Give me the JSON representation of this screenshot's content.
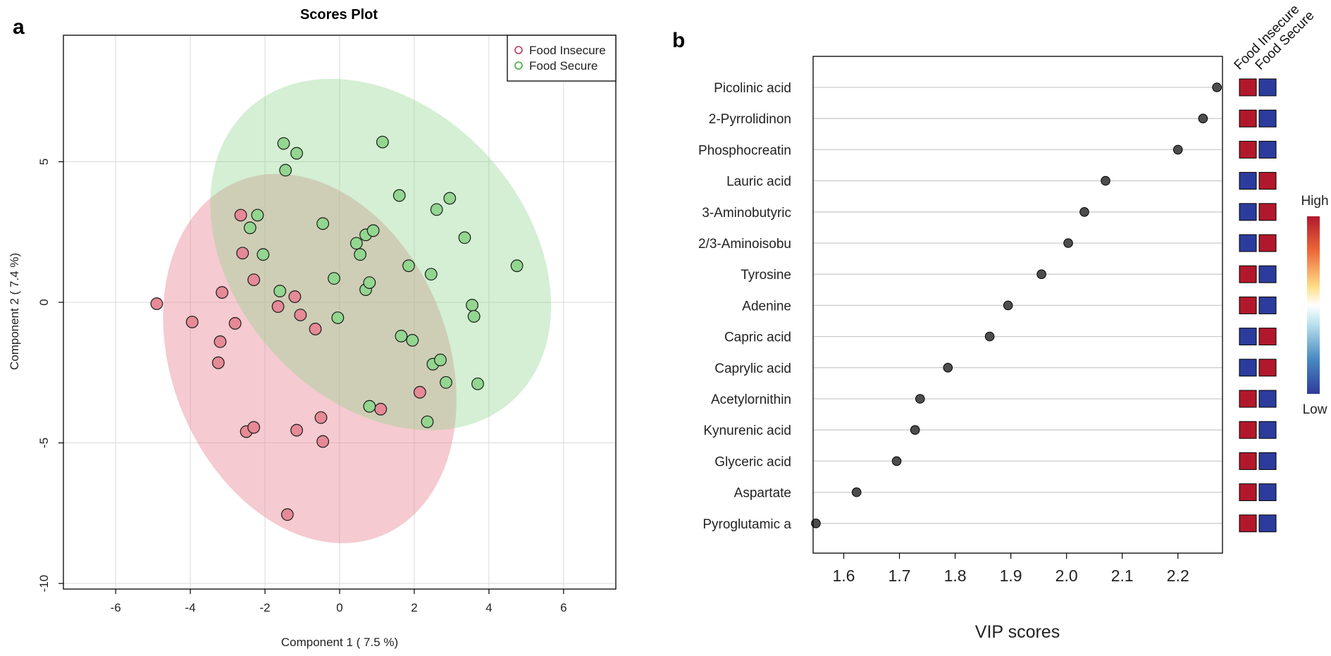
{
  "panel_a_label": "a",
  "panel_b_label": "b",
  "colors": {
    "insecure": "#e8808e",
    "secure": "#8ed48c",
    "insecure_marker": "#c0395a",
    "secure_marker": "#3fae3c",
    "high": "#b2182b",
    "low": "#2c3c9c",
    "dot": "#4d4d4d"
  },
  "chart_data": [
    {
      "type": "scatter",
      "title": "Scores Plot",
      "xlabel": "Component 1 ( 7.5 %)",
      "ylabel": "Component 2 ( 7.4 %)",
      "xlim": [
        -7.4,
        7.4
      ],
      "ylim": [
        -10.2,
        9.5
      ],
      "xticks": [
        -6,
        -4,
        -2,
        0,
        2,
        4,
        6
      ],
      "yticks": [
        -10,
        -5,
        0,
        5
      ],
      "grid": true,
      "legend_position": "top-right",
      "legend": [
        "Food Insecure",
        "Food Secure"
      ],
      "ellipses": [
        {
          "group": "Food Insecure",
          "center": [
            -0.8,
            -2.0
          ],
          "semi_axes": [
            3.7,
            6.8
          ],
          "rotation_deg": 22
        },
        {
          "group": "Food Secure",
          "center": [
            1.1,
            1.7
          ],
          "semi_axes": [
            3.9,
            7.0
          ],
          "rotation_deg": 42
        }
      ],
      "series": [
        {
          "name": "Food Insecure",
          "points": [
            [
              -4.9,
              -0.05
            ],
            [
              -3.95,
              -0.7
            ],
            [
              -3.15,
              0.35
            ],
            [
              -3.2,
              -1.4
            ],
            [
              -3.25,
              -2.15
            ],
            [
              -2.8,
              -0.75
            ],
            [
              -2.65,
              3.1
            ],
            [
              -2.6,
              1.75
            ],
            [
              -2.3,
              0.8
            ],
            [
              -2.5,
              -4.6
            ],
            [
              -2.3,
              -4.45
            ],
            [
              -1.65,
              -0.15
            ],
            [
              -1.2,
              0.2
            ],
            [
              -1.05,
              -0.45
            ],
            [
              -1.15,
              -4.55
            ],
            [
              -0.65,
              -0.95
            ],
            [
              -0.5,
              -4.1
            ],
            [
              -0.45,
              -4.95
            ],
            [
              -1.4,
              -7.55
            ],
            [
              1.1,
              -3.8
            ],
            [
              2.15,
              -3.2
            ]
          ]
        },
        {
          "name": "Food Secure",
          "points": [
            [
              -1.5,
              5.65
            ],
            [
              -1.15,
              5.3
            ],
            [
              -1.45,
              4.7
            ],
            [
              -2.2,
              3.1
            ],
            [
              -2.4,
              2.65
            ],
            [
              -2.05,
              1.7
            ],
            [
              -1.6,
              0.4
            ],
            [
              -0.45,
              2.8
            ],
            [
              -0.15,
              0.85
            ],
            [
              -0.05,
              -0.55
            ],
            [
              0.45,
              2.1
            ],
            [
              0.55,
              1.7
            ],
            [
              0.7,
              2.4
            ],
            [
              0.9,
              2.55
            ],
            [
              0.7,
              0.45
            ],
            [
              0.8,
              0.7
            ],
            [
              0.8,
              -3.7
            ],
            [
              1.15,
              5.7
            ],
            [
              1.6,
              3.8
            ],
            [
              1.85,
              1.3
            ],
            [
              1.65,
              -1.2
            ],
            [
              1.95,
              -1.35
            ],
            [
              2.45,
              1.0
            ],
            [
              2.6,
              3.3
            ],
            [
              2.95,
              3.7
            ],
            [
              2.5,
              -2.2
            ],
            [
              2.7,
              -2.05
            ],
            [
              2.85,
              -2.85
            ],
            [
              2.35,
              -4.25
            ],
            [
              3.35,
              2.3
            ],
            [
              3.55,
              -0.1
            ],
            [
              3.6,
              -0.5
            ],
            [
              3.7,
              -2.9
            ],
            [
              4.75,
              1.3
            ]
          ]
        }
      ]
    },
    {
      "type": "dot",
      "xlabel": "VIP scores",
      "xlim": [
        1.545,
        2.28
      ],
      "xticks": [
        "1.6",
        "1.7",
        "1.8",
        "1.9",
        "2.0",
        "2.1",
        "2.2"
      ],
      "heatmap_columns": [
        "Food Insecure",
        "Food Secure"
      ],
      "scale_labels": {
        "high": "High",
        "low": "Low"
      },
      "features": [
        {
          "name": "Picolinic acid",
          "vip": 2.27,
          "insecure": "high",
          "secure": "low"
        },
        {
          "name": "2-Pyrrolidinon",
          "vip": 2.245,
          "insecure": "high",
          "secure": "low"
        },
        {
          "name": "Phosphocreatin",
          "vip": 2.2,
          "insecure": "high",
          "secure": "low"
        },
        {
          "name": "Lauric acid",
          "vip": 2.07,
          "insecure": "low",
          "secure": "high"
        },
        {
          "name": "3-Aminobutyric",
          "vip": 2.032,
          "insecure": "low",
          "secure": "high"
        },
        {
          "name": "2/3-Aminoisobu",
          "vip": 2.003,
          "insecure": "low",
          "secure": "high"
        },
        {
          "name": "Tyrosine",
          "vip": 1.955,
          "insecure": "high",
          "secure": "low"
        },
        {
          "name": "Adenine",
          "vip": 1.895,
          "insecure": "high",
          "secure": "low"
        },
        {
          "name": "Capric acid",
          "vip": 1.862,
          "insecure": "low",
          "secure": "high"
        },
        {
          "name": "Caprylic acid",
          "vip": 1.787,
          "insecure": "low",
          "secure": "high"
        },
        {
          "name": "Acetylornithin",
          "vip": 1.737,
          "insecure": "high",
          "secure": "low"
        },
        {
          "name": "Kynurenic acid",
          "vip": 1.728,
          "insecure": "high",
          "secure": "low"
        },
        {
          "name": "Glyceric acid",
          "vip": 1.695,
          "insecure": "high",
          "secure": "low"
        },
        {
          "name": "Aspartate",
          "vip": 1.623,
          "insecure": "high",
          "secure": "low"
        },
        {
          "name": "Pyroglutamic a",
          "vip": 1.55,
          "insecure": "high",
          "secure": "low"
        }
      ]
    }
  ]
}
